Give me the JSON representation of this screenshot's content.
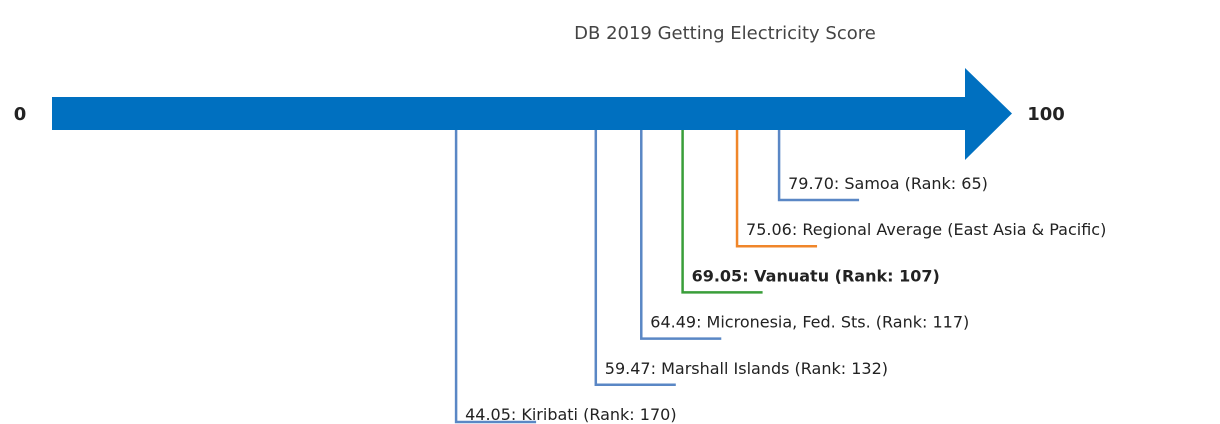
{
  "chart_data": {
    "type": "number_line",
    "title": "DB 2019 Getting Electricity Score",
    "xlim": [
      0,
      100
    ],
    "xticks": [
      0,
      100
    ],
    "axis_color": "#0070c0",
    "values": [
      79.7,
      75.06,
      69.05,
      64.49,
      59.47,
      44.05
    ],
    "value_labels": [
      "79.70: Samoa (Rank: 65)",
      "75.06: Regional Average (East Asia & Pacific)",
      "69.05: Vanuatu (Rank: 107)",
      "64.49: Micronesia, Fed. Sts. (Rank: 117)",
      "59.47: Marshall Islands (Rank: 132)",
      "44.05: Kiribati (Rank: 170)"
    ],
    "colors": [
      "#5a87c5",
      "#f0862a",
      "#3a9e3a",
      "#5a87c5",
      "#5a87c5",
      "#5a87c5"
    ],
    "bold": [
      false,
      false,
      true,
      false,
      false,
      false
    ]
  }
}
